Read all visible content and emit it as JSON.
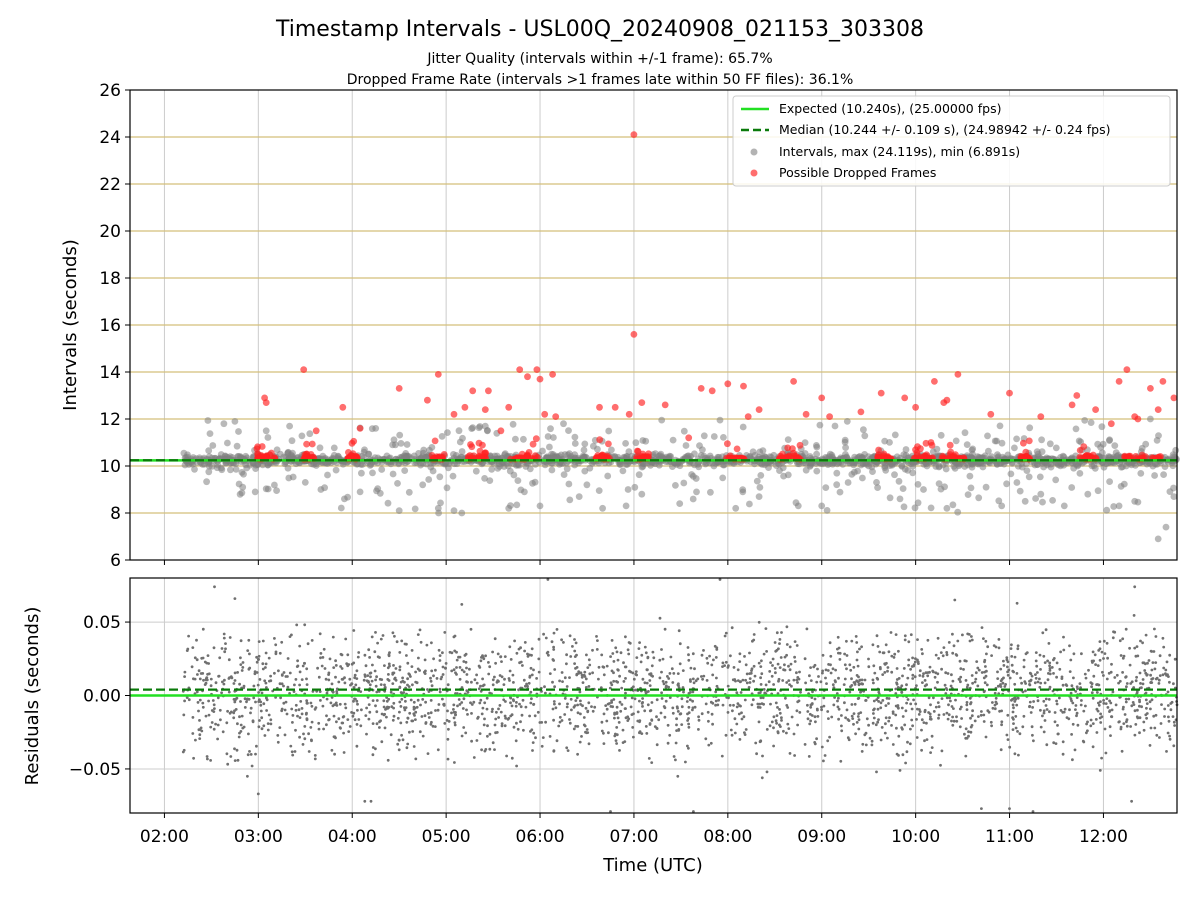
{
  "figure": {
    "title": "Timestamp Intervals - USL00Q_20240908_021153_303308",
    "subtitle_1": "Jitter Quality (intervals within +/-1 frame): 65.7%",
    "subtitle_2": "Dropped Frame Rate (intervals >1 frames late within 50 FF files): 36.1%"
  },
  "colors": {
    "expected": "#22e022",
    "median": "#0a7a0a",
    "interval_point": "#808080",
    "dropped_point": "#ff2020",
    "residual_point": "#707070",
    "hgrid_top": "#d4bf7a",
    "grid": "#cccccc"
  },
  "chart_data": [
    {
      "type": "scatter",
      "ylabel": "Intervals (seconds)",
      "ylim": [
        6,
        26
      ],
      "yticks": [
        "6",
        "8",
        "10",
        "12",
        "14",
        "16",
        "18",
        "20",
        "22",
        "24",
        "26"
      ],
      "xlim_hours": [
        1.6333,
        12.7833
      ],
      "grid": true,
      "legend_position": "upper-right",
      "lines": {
        "expected": {
          "name": "Expected (10.240s), (25.00000 fps)",
          "y": 10.24
        },
        "median": {
          "name": "Median (10.244 +/- 0.109 s), (24.98942 +/- 0.24 fps)",
          "y": 10.244
        }
      },
      "series": [
        {
          "name": "Intervals, max (24.119s), min (6.891s)",
          "max": 24.119,
          "min": 6.891,
          "points_time_y": [
            [
              "02:38",
              11.8
            ],
            [
              "02:45",
              11.9
            ],
            [
              "02:50",
              9.1
            ],
            [
              "02:58",
              8.9
            ],
            [
              "03:05",
              11.5
            ],
            [
              "03:20",
              11.7
            ],
            [
              "03:30",
              9.3
            ],
            [
              "03:40",
              9.0
            ],
            [
              "03:55",
              8.6
            ],
            [
              "04:05",
              8.9
            ],
            [
              "04:15",
              11.6
            ],
            [
              "04:30",
              8.1
            ],
            [
              "04:45",
              9.2
            ],
            [
              "04:55",
              8.2
            ],
            [
              "05:05",
              8.1
            ],
            [
              "05:10",
              8.0
            ],
            [
              "05:25",
              11.7
            ],
            [
              "05:40",
              8.2
            ],
            [
              "05:50",
              8.9
            ],
            [
              "06:00",
              8.3
            ],
            [
              "06:15",
              11.8
            ],
            [
              "06:25",
              8.7
            ],
            [
              "06:40",
              8.2
            ],
            [
              "06:55",
              8.3
            ],
            [
              "07:05",
              8.8
            ],
            [
              "07:25",
              11.1
            ],
            [
              "07:40",
              8.9
            ],
            [
              "08:05",
              8.2
            ],
            [
              "08:20",
              8.7
            ],
            [
              "08:45",
              8.3
            ],
            [
              "09:00",
              8.3
            ],
            [
              "09:15",
              11.1
            ],
            [
              "09:35",
              9.3
            ],
            [
              "09:50",
              8.6
            ],
            [
              "10:05",
              9.0
            ],
            [
              "10:20",
              8.2
            ],
            [
              "10:45",
              9.1
            ],
            [
              "10:55",
              8.3
            ],
            [
              "11:10",
              8.5
            ],
            [
              "11:20",
              8.8
            ],
            [
              "11:35",
              8.3
            ],
            [
              "11:50",
              8.8
            ],
            [
              "12:10",
              8.3
            ],
            [
              "12:20",
              8.5
            ],
            [
              "12:30",
              12.0
            ],
            [
              "12:35",
              6.9
            ],
            [
              "12:40",
              7.4
            ],
            [
              "12:45",
              8.7
            ]
          ]
        },
        {
          "name": "Possible Dropped Frames",
          "points_time_y": [
            [
              "03:04",
              12.9
            ],
            [
              "03:05",
              12.7
            ],
            [
              "03:29",
              14.1
            ],
            [
              "03:37",
              11.5
            ],
            [
              "03:54",
              12.5
            ],
            [
              "04:05",
              11.6
            ],
            [
              "04:30",
              13.3
            ],
            [
              "04:48",
              12.8
            ],
            [
              "04:55",
              13.9
            ],
            [
              "05:05",
              12.2
            ],
            [
              "05:12",
              12.5
            ],
            [
              "05:17",
              13.2
            ],
            [
              "05:25",
              12.4
            ],
            [
              "05:27",
              13.2
            ],
            [
              "05:35",
              11.5
            ],
            [
              "05:40",
              12.5
            ],
            [
              "05:47",
              14.1
            ],
            [
              "05:52",
              13.8
            ],
            [
              "05:58",
              14.1
            ],
            [
              "06:00",
              13.7
            ],
            [
              "06:03",
              12.2
            ],
            [
              "06:08",
              13.9
            ],
            [
              "06:10",
              12.1
            ],
            [
              "06:38",
              12.5
            ],
            [
              "06:48",
              12.5
            ],
            [
              "06:57",
              12.2
            ],
            [
              "07:00",
              24.1
            ],
            [
              "07:00",
              15.6
            ],
            [
              "07:05",
              12.7
            ],
            [
              "07:20",
              12.6
            ],
            [
              "07:35",
              11.2
            ],
            [
              "07:43",
              13.3
            ],
            [
              "07:50",
              13.2
            ],
            [
              "08:00",
              13.5
            ],
            [
              "08:10",
              13.4
            ],
            [
              "08:13",
              12.1
            ],
            [
              "08:20",
              12.4
            ],
            [
              "08:42",
              13.6
            ],
            [
              "08:50",
              12.2
            ],
            [
              "09:00",
              12.9
            ],
            [
              "09:05",
              12.1
            ],
            [
              "09:25",
              12.3
            ],
            [
              "09:38",
              13.1
            ],
            [
              "09:53",
              12.9
            ],
            [
              "10:00",
              12.5
            ],
            [
              "10:12",
              13.6
            ],
            [
              "10:18",
              12.7
            ],
            [
              "10:20",
              12.8
            ],
            [
              "10:27",
              13.9
            ],
            [
              "10:48",
              12.2
            ],
            [
              "11:00",
              13.1
            ],
            [
              "11:20",
              12.1
            ],
            [
              "11:40",
              12.6
            ],
            [
              "11:43",
              13.0
            ],
            [
              "11:55",
              12.4
            ],
            [
              "12:05",
              11.8
            ],
            [
              "12:10",
              13.6
            ],
            [
              "12:15",
              14.1
            ],
            [
              "12:20",
              12.1
            ],
            [
              "12:22",
              12.0
            ],
            [
              "12:30",
              13.3
            ],
            [
              "12:35",
              12.4
            ],
            [
              "12:38",
              13.6
            ],
            [
              "12:45",
              12.9
            ]
          ]
        }
      ]
    },
    {
      "type": "scatter",
      "ylabel": "Residuals (seconds)",
      "xlabel": "Time (UTC)",
      "ylim": [
        -0.08,
        0.08
      ],
      "yticks": [
        "−0.05",
        "0.00",
        "0.05"
      ],
      "xticks": [
        "02:00",
        "03:00",
        "04:00",
        "05:00",
        "06:00",
        "07:00",
        "08:00",
        "09:00",
        "10:00",
        "11:00",
        "12:00"
      ],
      "xlim_hours": [
        1.6333,
        12.7833
      ],
      "grid": true,
      "lines": {
        "expected": {
          "y": 0.0
        },
        "median": {
          "y": 0.004
        }
      },
      "series": [
        {
          "name": "Residuals",
          "outliers_time_y": [
            [
              "02:32",
              0.074
            ],
            [
              "02:45",
              0.066
            ],
            [
              "02:53",
              -0.055
            ],
            [
              "02:56",
              -0.048
            ],
            [
              "03:00",
              -0.067
            ],
            [
              "04:08",
              -0.072
            ],
            [
              "04:12",
              -0.072
            ],
            [
              "05:10",
              0.062
            ],
            [
              "05:45",
              -0.048
            ],
            [
              "06:05",
              0.079
            ],
            [
              "06:45",
              -0.079
            ],
            [
              "07:28",
              -0.055
            ],
            [
              "07:38",
              -0.079
            ],
            [
              "07:55",
              0.079
            ],
            [
              "08:22",
              -0.056
            ],
            [
              "08:25",
              -0.052
            ],
            [
              "09:35",
              -0.052
            ],
            [
              "09:50",
              -0.051
            ],
            [
              "10:25",
              0.065
            ],
            [
              "10:42",
              -0.077
            ],
            [
              "11:00",
              -0.077
            ],
            [
              "11:15",
              -0.079
            ],
            [
              "11:58",
              -0.051
            ],
            [
              "12:20",
              0.074
            ],
            [
              "12:18",
              -0.072
            ]
          ]
        }
      ]
    }
  ]
}
